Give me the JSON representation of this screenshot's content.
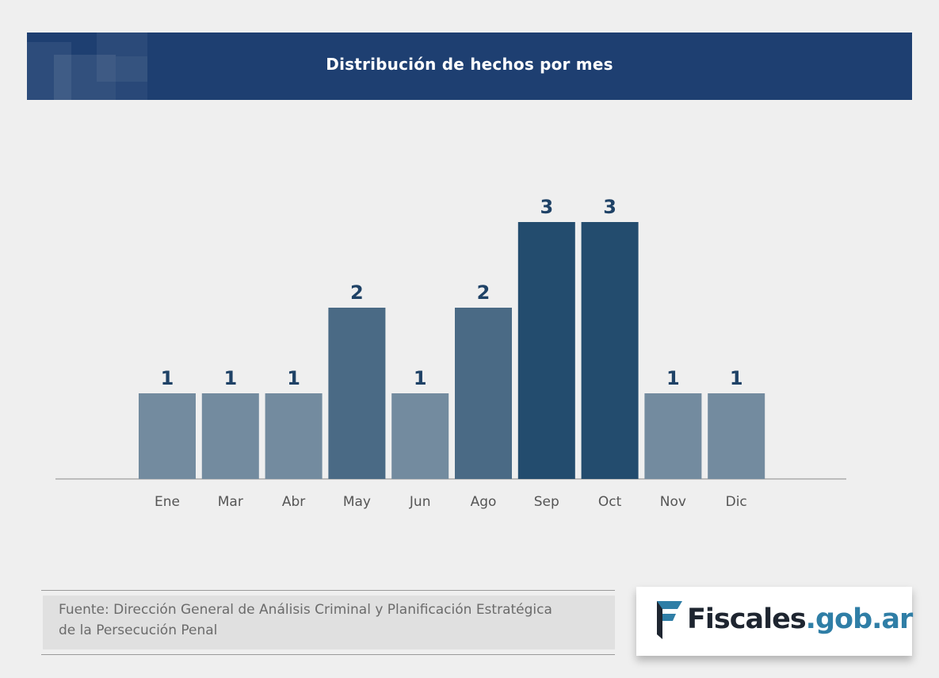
{
  "header": {
    "title": "Distribución de hechos por mes"
  },
  "chart_data": {
    "type": "bar",
    "title": "Distribución de hechos por mes",
    "categories": [
      "Ene",
      "Mar",
      "Abr",
      "May",
      "Jun",
      "Ago",
      "Sep",
      "Oct",
      "Nov",
      "Dic"
    ],
    "values": [
      1,
      1,
      1,
      2,
      1,
      2,
      3,
      3,
      1,
      1
    ],
    "ylim": [
      0,
      3
    ],
    "grid": false,
    "colors": {
      "1": "#738b9f",
      "2": "#4a6a85",
      "3": "#234c6e"
    },
    "label_color": "#1f4266",
    "tick_color": "#555555",
    "axis_color": "#8a8a8a"
  },
  "footer": {
    "source_line1": "Fuente: Dirección General de Análisis Criminal y Planificación Estratégica",
    "source_line2": "de la Persecución Penal",
    "logo_part1": "Fiscales",
    "logo_part2": ".gob.ar"
  }
}
